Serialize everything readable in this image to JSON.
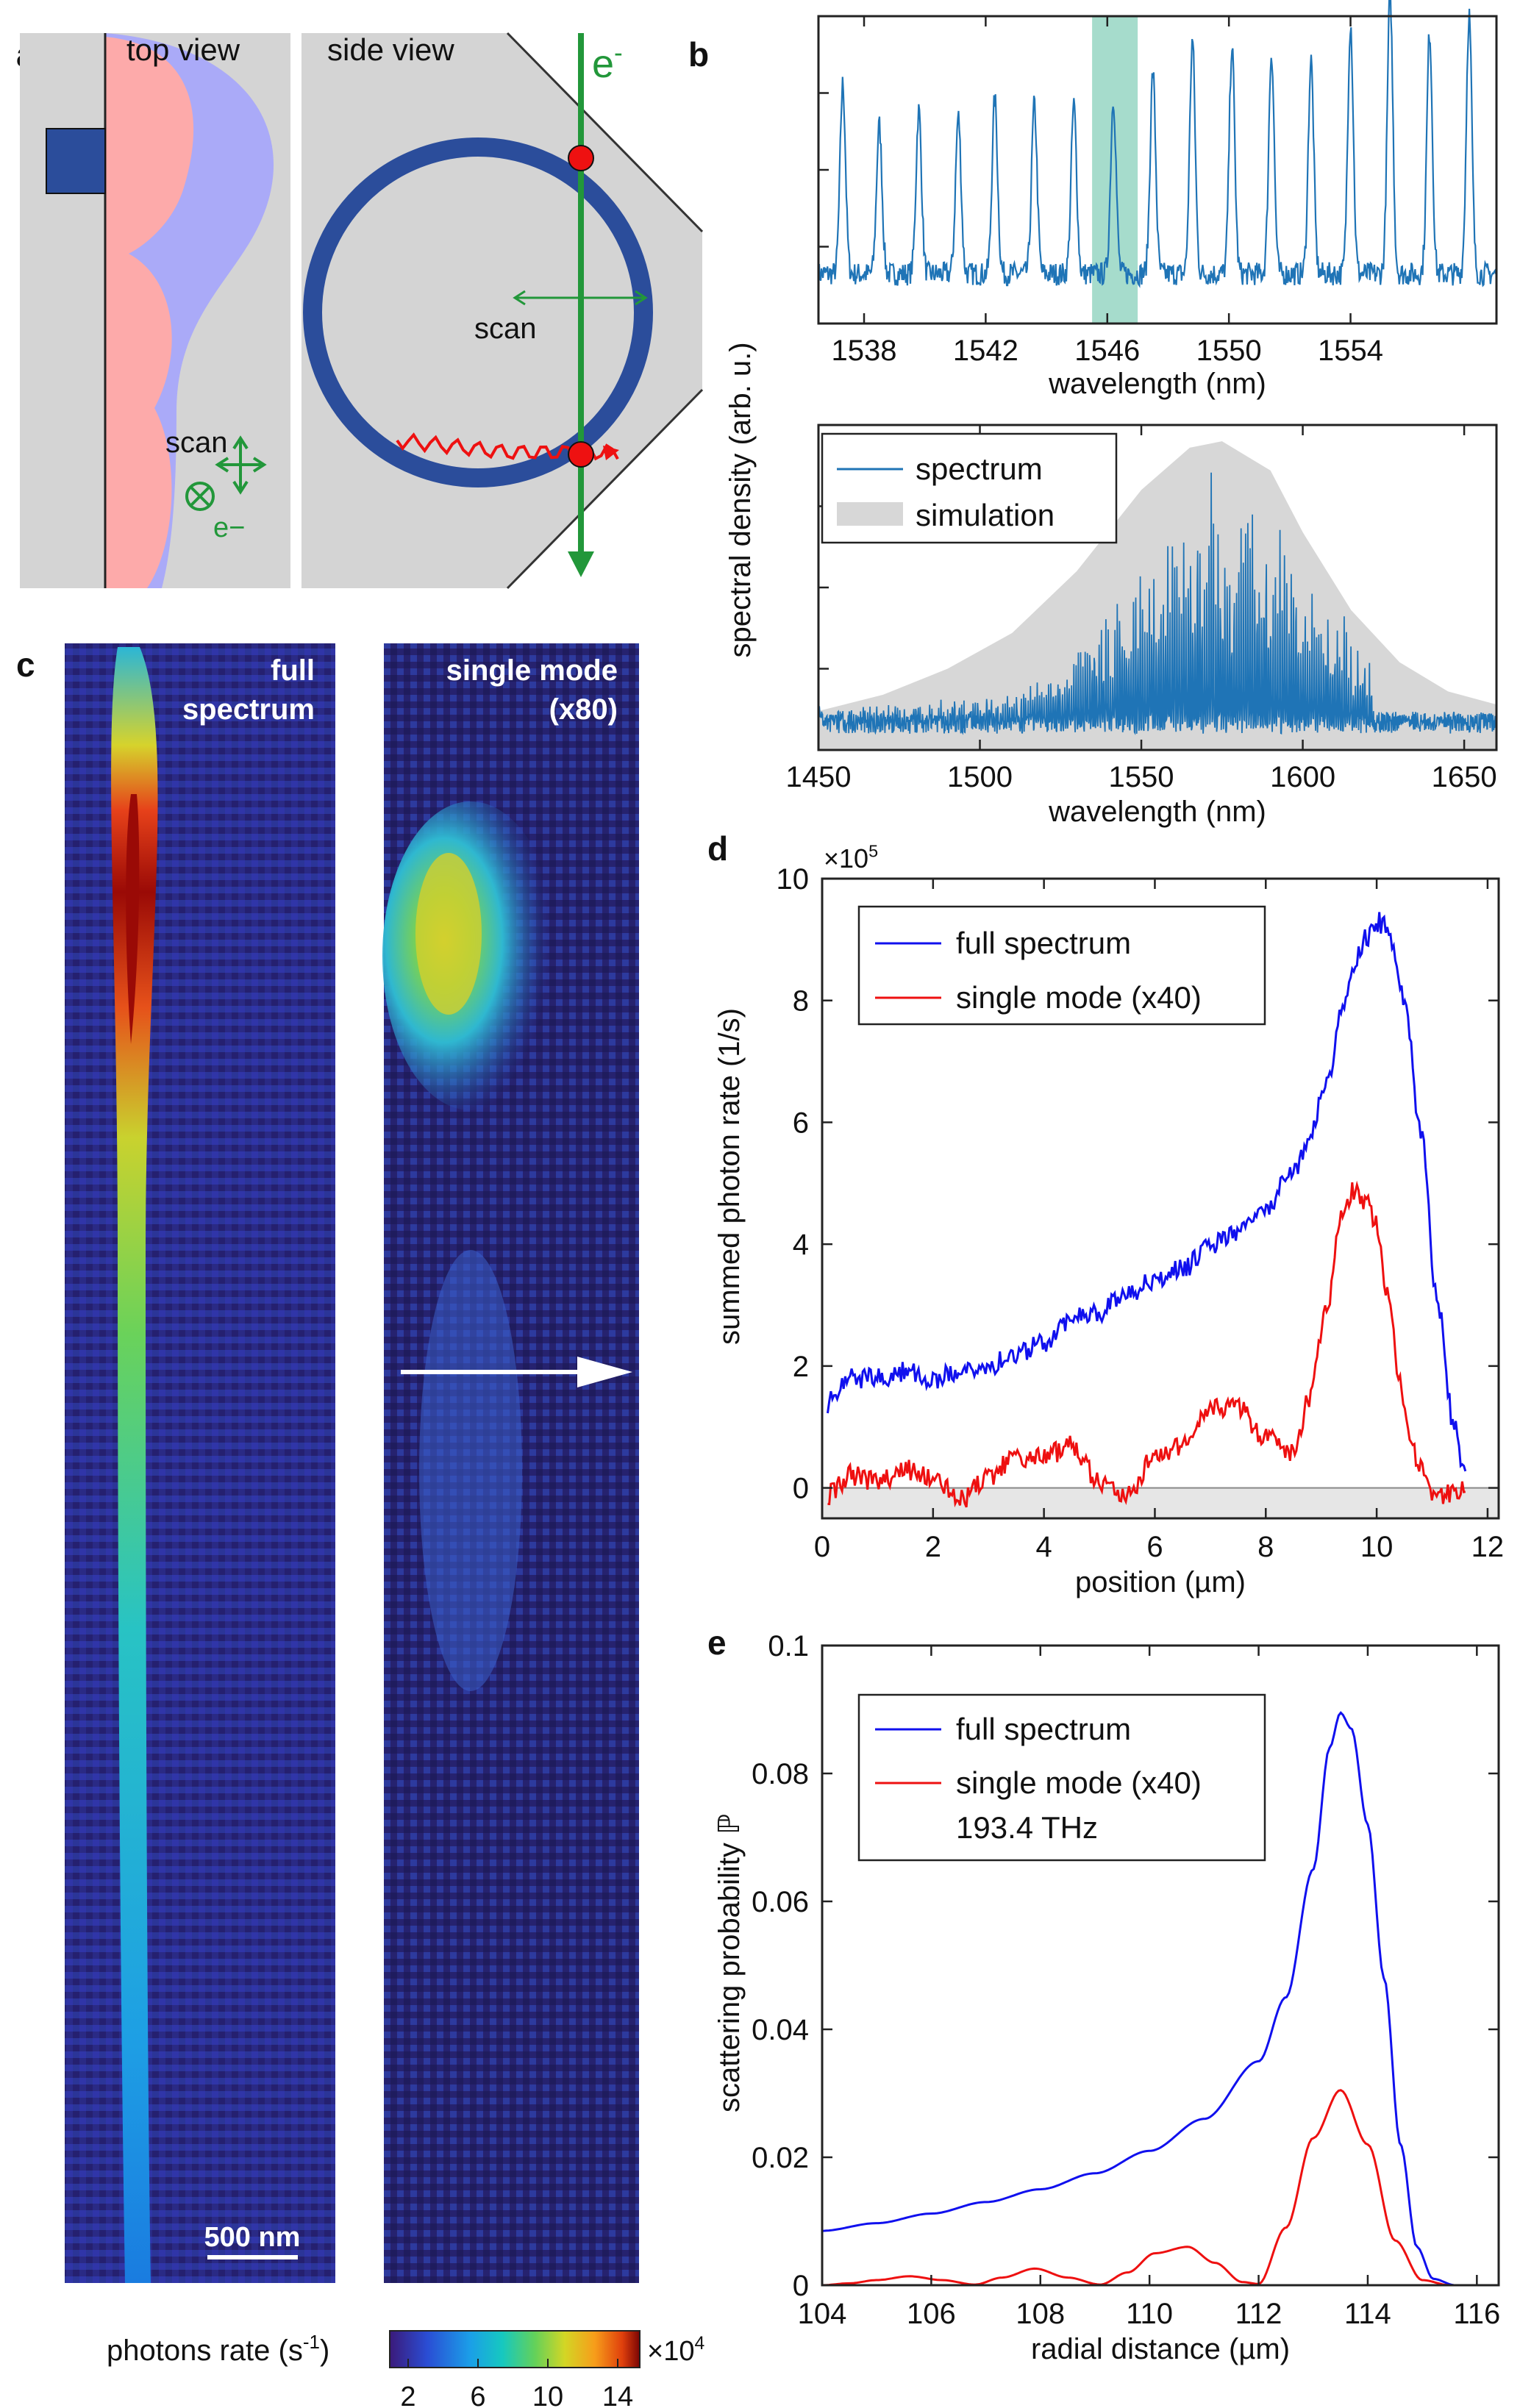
{
  "panel_labels": {
    "a": "a",
    "b": "b",
    "c": "c",
    "d": "d",
    "e": "e"
  },
  "panel_a": {
    "top_view_label": "top view",
    "side_view_label": "side view",
    "electron_label": "e",
    "electron_sup": "-",
    "scan_label_top": "scan",
    "scan_label_side": "scan",
    "electron_symbol_label": "e−",
    "colors": {
      "substrate": "#d4d4d4",
      "field": "#aaaaf8",
      "mode": "#fdaaaa",
      "ring": "#2b4d9b",
      "beam": "#22973a",
      "marker": "#ee1111"
    }
  },
  "panel_b": {
    "shared_ylabel": "spectral density (arb. u.)",
    "legend": {
      "spectrum": "spectrum",
      "simulation": "simulation"
    }
  },
  "panel_c": {
    "left_title_line1": "full",
    "left_title_line2": "spectrum",
    "right_title_line1": "single mode",
    "right_title_line2": "(x80)",
    "scalebar_label": "500 nm",
    "colorbar_label": "photons rate (s",
    "colorbar_label_sup": "-1",
    "colorbar_label_tail": ")",
    "colorbar_ticks": [
      "2",
      "6",
      "10",
      "14"
    ],
    "colorbar_multiplier": "×10",
    "colorbar_multiplier_exp": "4"
  },
  "chart_data": [
    {
      "id": "b-top",
      "type": "line",
      "xlabel": "wavelength (nm)",
      "ylabel": "",
      "xlim": [
        1536.5,
        1558.8
      ],
      "ylim": [
        0,
        1
      ],
      "xticks": [
        1538,
        1542,
        1546,
        1550,
        1554
      ],
      "highlight_band": [
        1545.5,
        1547
      ],
      "series": [
        {
          "name": "spectrum",
          "color": "#1f74b6",
          "x": [
            1537.3,
            1538.5,
            1539.8,
            1541.1,
            1542.3,
            1543.6,
            1544.9,
            1546.2,
            1547.5,
            1548.8,
            1550.1,
            1551.4,
            1552.7,
            1554.0,
            1555.3,
            1556.6,
            1557.9
          ],
          "peaks": [
            0.65,
            0.51,
            0.56,
            0.54,
            0.6,
            0.58,
            0.58,
            0.6,
            0.69,
            0.8,
            0.78,
            0.76,
            0.73,
            0.86,
            0.96,
            0.83,
            0.89
          ],
          "baseline": 0.17
        }
      ]
    },
    {
      "id": "b-bottom",
      "type": "line",
      "xlabel": "wavelength (nm)",
      "ylabel": "",
      "xlim": [
        1450,
        1660
      ],
      "ylim": [
        0,
        1
      ],
      "xticks": [
        1450,
        1500,
        1550,
        1600,
        1650
      ],
      "series": [
        {
          "name": "simulation",
          "color": "#d7d7d7",
          "x": [
            1450,
            1470,
            1490,
            1510,
            1530,
            1550,
            1565,
            1575,
            1590,
            1600,
            1615,
            1630,
            1645,
            1660
          ],
          "y": [
            0.12,
            0.17,
            0.25,
            0.36,
            0.55,
            0.8,
            0.93,
            0.95,
            0.86,
            0.67,
            0.43,
            0.27,
            0.18,
            0.14
          ]
        },
        {
          "name": "spectrum",
          "color": "#1f74b6",
          "envelope_center": 1575,
          "envelope_width": 28,
          "envelope_peak": 0.72,
          "cutoff": 1622,
          "baseline": 0.08
        }
      ]
    },
    {
      "id": "d",
      "type": "line",
      "title": "",
      "xlabel": "position (µm)",
      "ylabel": "summed photon rate (1/s)",
      "y_multiplier": "×10",
      "y_multiplier_exp": "5",
      "xlim": [
        0,
        12.2
      ],
      "ylim": [
        -0.5,
        10
      ],
      "xticks": [
        0,
        2,
        4,
        6,
        8,
        10,
        12
      ],
      "yticks": [
        0,
        2,
        4,
        6,
        8,
        10
      ],
      "legend": [
        "full spectrum",
        "single mode (x40)"
      ],
      "series": [
        {
          "name": "full spectrum",
          "color": "#1010ee",
          "x": [
            0.1,
            0.5,
            1,
            1.5,
            2,
            2.5,
            3,
            3.5,
            4,
            4.5,
            5,
            5.5,
            6,
            6.5,
            7,
            7.5,
            8,
            8.5,
            8.8,
            9.1,
            9.4,
            9.6,
            9.8,
            10,
            10.2,
            10.5,
            10.8,
            11.1,
            11.4,
            11.6
          ],
          "y": [
            1.4,
            1.8,
            1.8,
            1.9,
            1.8,
            1.9,
            2.0,
            2.2,
            2.4,
            2.8,
            2.9,
            3.2,
            3.4,
            3.6,
            4.0,
            4.2,
            4.6,
            5.2,
            5.8,
            6.7,
            7.9,
            8.6,
            9.0,
            9.3,
            9.2,
            8.0,
            5.8,
            3.0,
            1.0,
            0.2
          ]
        },
        {
          "name": "single mode (x40)",
          "color": "#ee1010",
          "x": [
            0.1,
            0.5,
            1,
            1.5,
            2,
            2.5,
            3,
            3.5,
            4,
            4.5,
            5,
            5.5,
            6,
            6.5,
            7,
            7.5,
            8,
            8.5,
            8.8,
            9.1,
            9.4,
            9.6,
            9.8,
            10,
            10.2,
            10.4,
            10.6,
            10.8,
            11,
            11.2,
            11.6
          ],
          "y": [
            -0.1,
            0.2,
            0.1,
            0.3,
            0.2,
            -0.2,
            0.2,
            0.5,
            0.5,
            0.7,
            0.1,
            -0.1,
            0.5,
            0.7,
            1.3,
            1.3,
            0.8,
            0.6,
            1.5,
            3.0,
            4.6,
            4.9,
            4.7,
            4.3,
            3.2,
            1.8,
            0.8,
            0.3,
            -0.1,
            -0.1,
            0.0
          ]
        }
      ]
    },
    {
      "id": "e",
      "type": "line",
      "title": "",
      "xlabel": "radial distance (µm)",
      "ylabel": "scattering probability",
      "ylabel_symbol": "ℙ",
      "xlim": [
        104,
        116.4
      ],
      "ylim": [
        0,
        0.1
      ],
      "xticks": [
        104,
        106,
        108,
        110,
        112,
        114,
        116
      ],
      "yticks": [
        0,
        0.02,
        0.04,
        0.06,
        0.08,
        0.1
      ],
      "ytick_labels": [
        "0",
        "0.02",
        "0.04",
        "0.06",
        "0.08",
        "0.1"
      ],
      "legend": [
        "full spectrum",
        "single mode (x40)",
        "193.4 THz"
      ],
      "series": [
        {
          "name": "full spectrum",
          "color": "#1010ee",
          "x": [
            104,
            105,
            106,
            107,
            108,
            109,
            110,
            111,
            112,
            112.5,
            113,
            113.3,
            113.5,
            113.7,
            114,
            114.3,
            114.6,
            114.9,
            115.2,
            115.6,
            116.4
          ],
          "y": [
            0.0085,
            0.0097,
            0.0112,
            0.013,
            0.015,
            0.0175,
            0.021,
            0.026,
            0.035,
            0.045,
            0.065,
            0.084,
            0.0895,
            0.087,
            0.072,
            0.048,
            0.022,
            0.006,
            0.001,
            0.0,
            0.0
          ]
        },
        {
          "name": "single mode (x40)",
          "color": "#ee1010",
          "x": [
            104,
            104.5,
            105,
            105.6,
            106.2,
            106.8,
            107.3,
            107.9,
            108.5,
            109.1,
            109.6,
            110.1,
            110.7,
            111.2,
            111.7,
            112.0,
            112.5,
            113.0,
            113.5,
            114.0,
            114.5,
            115.0,
            115.5,
            116.4
          ],
          "y": [
            0.0,
            0.0003,
            0.0008,
            0.0014,
            0.0008,
            0.0001,
            0.0012,
            0.0026,
            0.0012,
            0.0001,
            0.002,
            0.005,
            0.006,
            0.0035,
            0.0005,
            0.0002,
            0.009,
            0.023,
            0.0305,
            0.022,
            0.007,
            0.0008,
            0.0,
            0.0
          ]
        }
      ]
    }
  ]
}
